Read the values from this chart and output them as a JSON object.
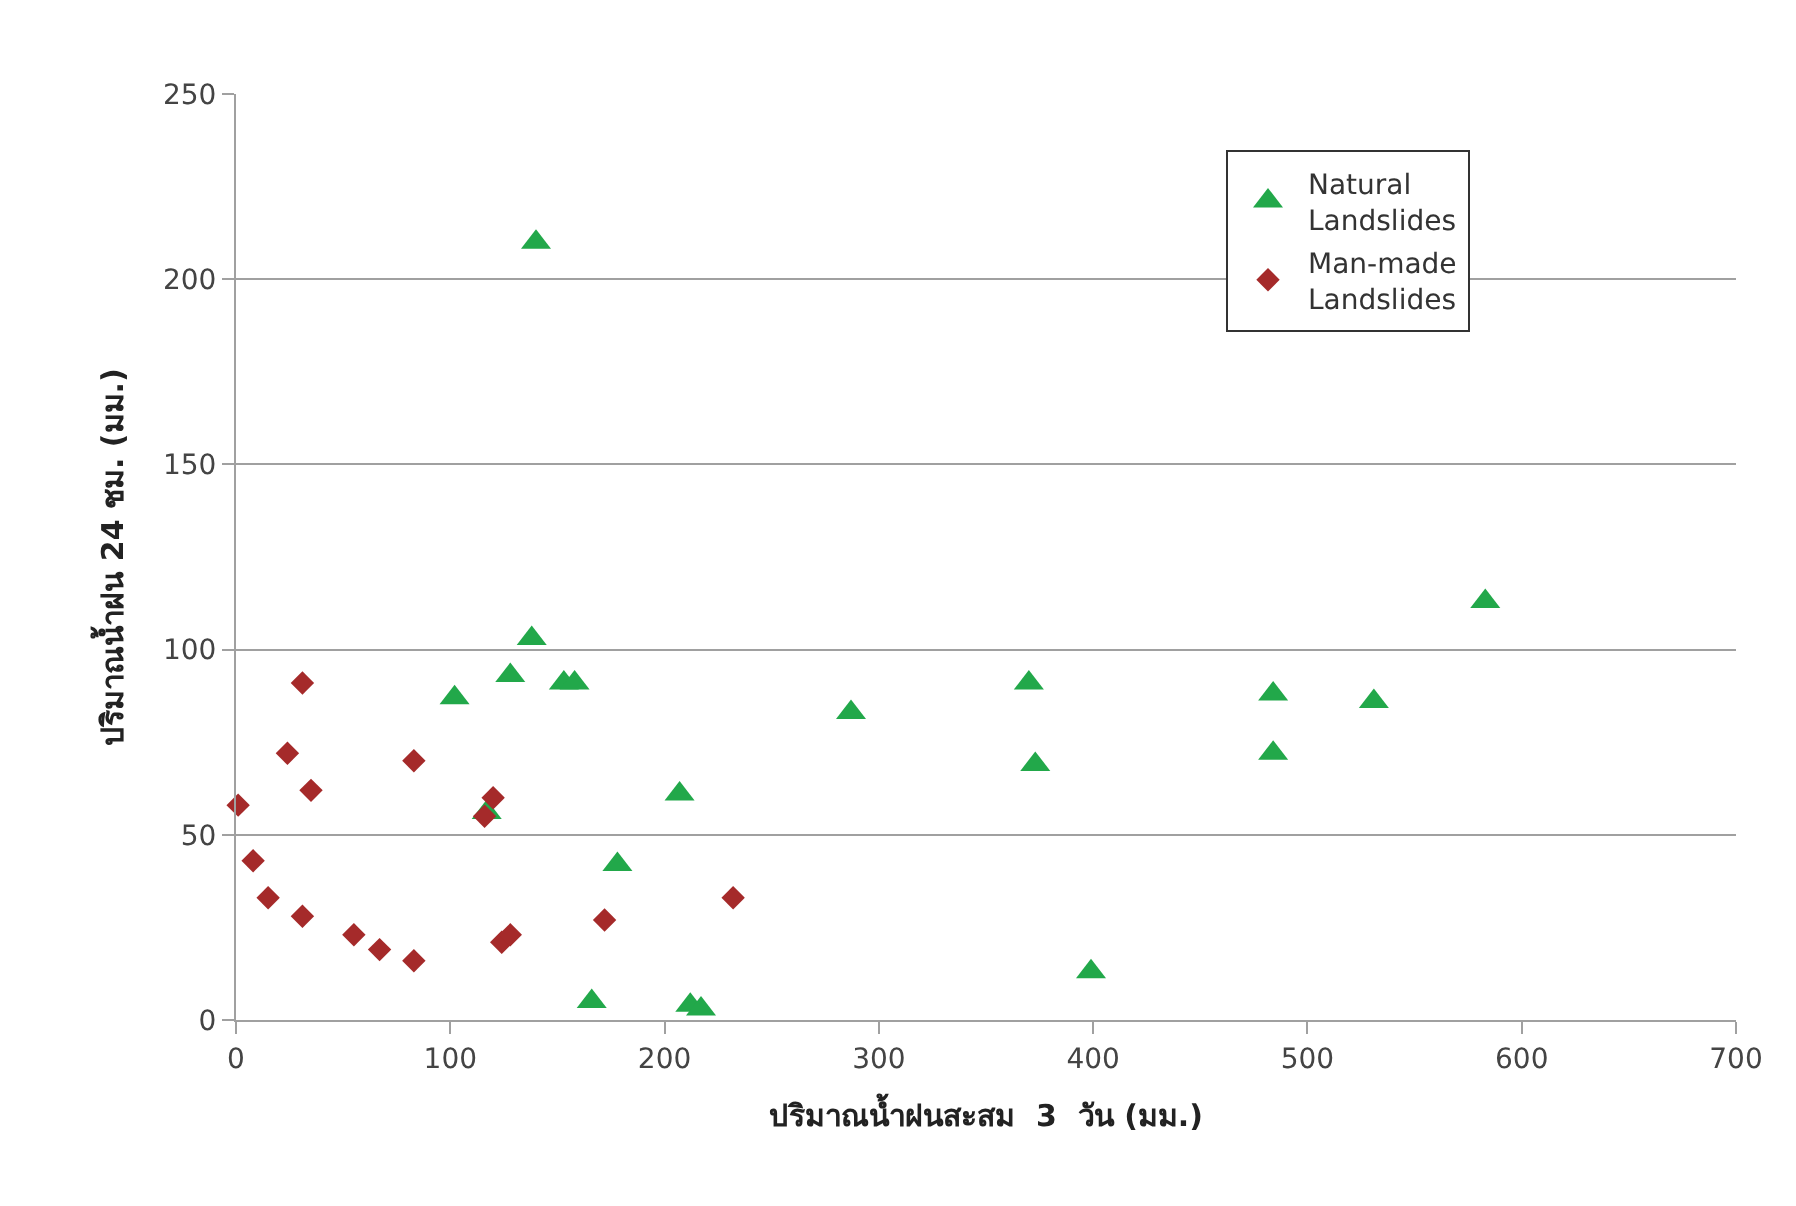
{
  "chart_data": {
    "type": "scatter",
    "xlabel": "ปริมาณน้ำฝนสะสม  3  วัน (มม.)",
    "ylabel": "ปริมาณน้ำฝน 24 ชม. (มม.)",
    "xlim": [
      0,
      700
    ],
    "xticks": [
      0,
      100,
      200,
      300,
      400,
      500,
      600,
      700
    ],
    "ylim": [
      0,
      250
    ],
    "yticks": [
      0,
      50,
      100,
      150,
      200,
      250
    ],
    "grid": "y",
    "legend": "top right",
    "series": [
      {
        "name": "Natural Landslides",
        "color": "#22a84a",
        "marker": "triangle",
        "x": [
          140,
          138,
          102,
          128,
          153,
          158,
          207,
          178,
          166,
          212,
          217,
          117,
          287,
          370,
          373,
          399,
          484,
          484,
          531,
          583
        ],
        "values": [
          210,
          103,
          87,
          93,
          91,
          91,
          61,
          42,
          5,
          4,
          3,
          56,
          83,
          91,
          69,
          13,
          88,
          72,
          86,
          113
        ]
      },
      {
        "name": "Man-made Landslides",
        "color": "#a52a2a",
        "marker": "diamond",
        "x": [
          1,
          8,
          15,
          24,
          31,
          35,
          31,
          55,
          67,
          83,
          83,
          116,
          120,
          124,
          128,
          172,
          232
        ],
        "values": [
          58,
          43,
          33,
          72,
          91,
          62,
          28,
          23,
          19,
          16,
          70,
          55,
          60,
          21,
          23,
          27,
          33
        ]
      }
    ]
  }
}
